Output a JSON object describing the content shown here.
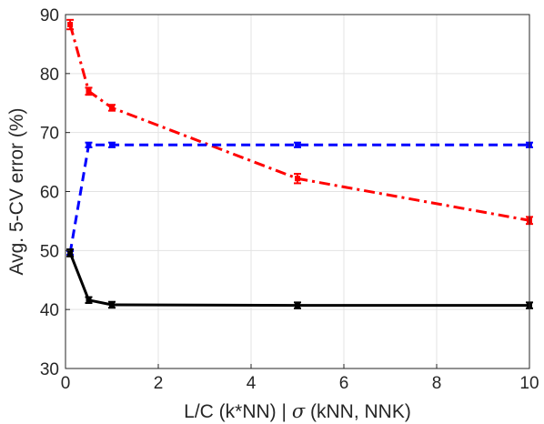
{
  "chart_data": {
    "type": "line",
    "title": "",
    "xlabel_parts": [
      "L/C (k*NN) | ",
      "σ",
      " (kNN, NNK)"
    ],
    "ylabel": "Avg. 5-CV error (%)",
    "xlim": [
      0,
      10
    ],
    "ylim": [
      30,
      90
    ],
    "xticks": [
      "0",
      "2",
      "4",
      "6",
      "8",
      "10"
    ],
    "yticks": [
      "30",
      "40",
      "50",
      "60",
      "70",
      "80",
      "90"
    ],
    "grid": true,
    "legend": "none",
    "x": [
      0.1,
      0.5,
      1,
      5,
      10
    ],
    "series": [
      {
        "values": [
          88.3,
          77.0,
          74.2,
          62.2,
          55.1
        ],
        "color": "#ff0000",
        "dash": "dashdot",
        "error": [
          0.8,
          0.6,
          0.5,
          0.8,
          0.6
        ]
      },
      {
        "values": [
          49.6,
          67.9,
          67.9,
          67.9,
          67.9
        ],
        "color": "#0000ff",
        "dash": "dashed",
        "error": [
          0.3,
          0.4,
          0.4,
          0.4,
          0.4
        ]
      },
      {
        "values": [
          49.6,
          41.6,
          40.8,
          40.7,
          40.7
        ],
        "color": "#000000",
        "dash": "solid",
        "error": [
          0.6,
          0.5,
          0.5,
          0.5,
          0.5
        ]
      }
    ]
  }
}
